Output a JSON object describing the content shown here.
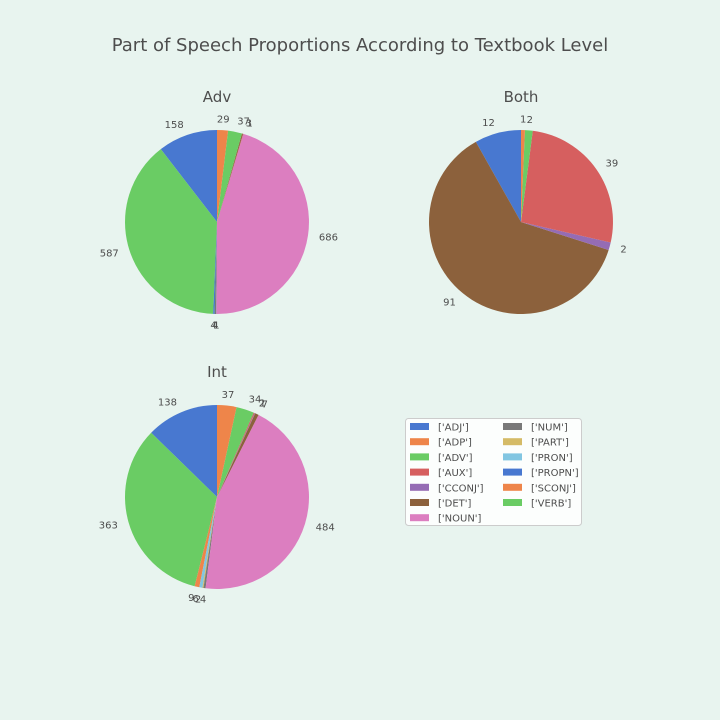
{
  "chart_data": {
    "type": "pie",
    "title": "Part of Speech Proportions According to Textbook Level",
    "legend": {
      "placement": "center",
      "entries": [
        {
          "label": "['ADJ']",
          "color": "#4878d0"
        },
        {
          "label": "['ADP']",
          "color": "#ee854a"
        },
        {
          "label": "['ADV']",
          "color": "#6acc64"
        },
        {
          "label": "['AUX']",
          "color": "#d65f5f"
        },
        {
          "label": "['CCONJ']",
          "color": "#956cb4"
        },
        {
          "label": "['DET']",
          "color": "#8c613c"
        },
        {
          "label": "['NOUN']",
          "color": "#dc7ec0"
        },
        {
          "label": "['NUM']",
          "color": "#797979"
        },
        {
          "label": "['PART']",
          "color": "#d5bb67"
        },
        {
          "label": "['PRON']",
          "color": "#82c6e2"
        },
        {
          "label": "['PROPN']",
          "color": "#4878d0"
        },
        {
          "label": "['SCONJ']",
          "color": "#ee854a"
        },
        {
          "label": "['VERB']",
          "color": "#6acc64"
        }
      ]
    },
    "charts": [
      {
        "title": "Adv",
        "slices": [
          {
            "label": "158",
            "value": 158,
            "color": "#4878d0"
          },
          {
            "label": "587",
            "value": 587,
            "color": "#6acc64"
          },
          {
            "label": "4",
            "value": 4,
            "color": "#4878d0"
          },
          {
            "label": "4",
            "value": 4,
            "color": "#797979"
          },
          {
            "label": "1",
            "value": 1,
            "color": "#956cb4"
          },
          {
            "label": "686",
            "value": 686,
            "color": "#dc7ec0"
          },
          {
            "label": "1",
            "value": 1,
            "color": "#d65f5f"
          },
          {
            "label": "3",
            "value": 3,
            "color": "#8c613c"
          },
          {
            "label": "37",
            "value": 37,
            "color": "#6acc64"
          },
          {
            "label": "29",
            "value": 29,
            "color": "#ee854a"
          }
        ]
      },
      {
        "title": "Both",
        "slices": [
          {
            "label": "12",
            "value": 12,
            "color": "#4878d0"
          },
          {
            "label": "91",
            "value": 91,
            "color": "#8c613c"
          },
          {
            "label": "2",
            "value": 2,
            "color": "#956cb4"
          },
          {
            "label": "39",
            "value": 39,
            "color": "#d65f5f"
          },
          {
            "label": "2",
            "value": 2,
            "color": "#6acc64"
          },
          {
            "label": "1",
            "value": 1,
            "color": "#ee854a"
          }
        ]
      },
      {
        "title": "Int",
        "slices": [
          {
            "label": "138",
            "value": 138,
            "color": "#4878d0"
          },
          {
            "label": "363",
            "value": 363,
            "color": "#6acc64"
          },
          {
            "label": "9",
            "value": 9,
            "color": "#ee854a"
          },
          {
            "label": "6",
            "value": 6,
            "color": "#82c6e2"
          },
          {
            "label": "2",
            "value": 2,
            "color": "#d5bb67"
          },
          {
            "label": "4",
            "value": 4,
            "color": "#797979"
          },
          {
            "label": "484",
            "value": 484,
            "color": "#dc7ec0"
          },
          {
            "label": "7",
            "value": 7,
            "color": "#8c613c"
          },
          {
            "label": "1",
            "value": 1,
            "color": "#956cb4"
          },
          {
            "label": "2",
            "value": 2,
            "color": "#d65f5f"
          },
          {
            "label": "34",
            "value": 34,
            "color": "#6acc64"
          },
          {
            "label": "37",
            "value": 37,
            "color": "#ee854a"
          }
        ]
      }
    ]
  }
}
